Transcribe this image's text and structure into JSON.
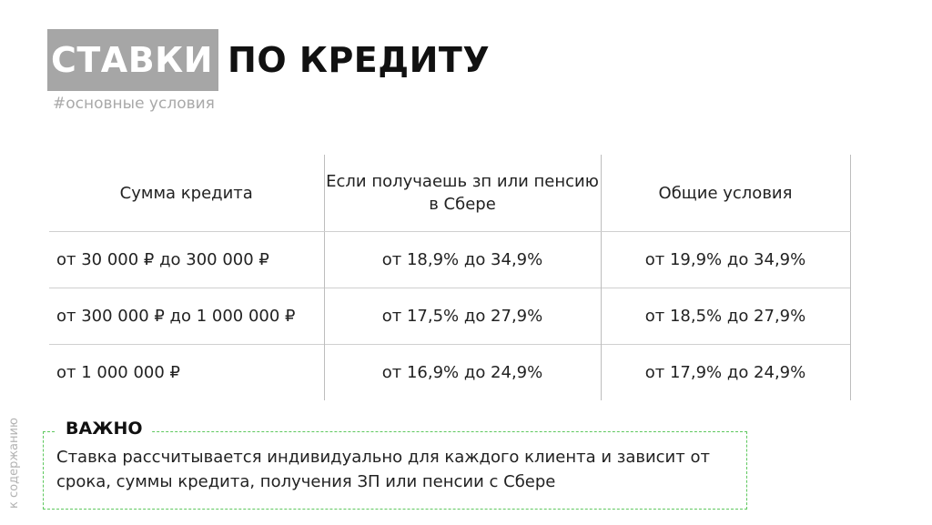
{
  "title": {
    "highlight": "СТАВКИ",
    "rest": "ПО КРЕДИТУ"
  },
  "subtitle": "#основные условия",
  "table": {
    "headers": [
      "Сумма кредита",
      "Если получаешь зп или пенсию в Сбере",
      "Общие условия"
    ],
    "rows": [
      [
        "от 30 000 ₽ до 300 000 ₽",
        "от 18,9% до 34,9%",
        "от 19,9% до 34,9%"
      ],
      [
        "от 300 000 ₽ до 1 000 000 ₽",
        "от 17,5% до 27,9%",
        "от 18,5% до 27,9%"
      ],
      [
        "от 1 000 000 ₽",
        "от 16,9% до 24,9%",
        "от 17,9% до 24,9%"
      ]
    ]
  },
  "important": {
    "label": "ВАЖНО",
    "text": "Ставка рассчитывается индивидуально для каждого клиента и зависит от срока, суммы кредита, получения ЗП или пенсии с Сбере"
  },
  "side_link": "к содержанию",
  "colors": {
    "highlight_bg": "#a6a6a6",
    "dashed_border": "#5ec85e"
  }
}
